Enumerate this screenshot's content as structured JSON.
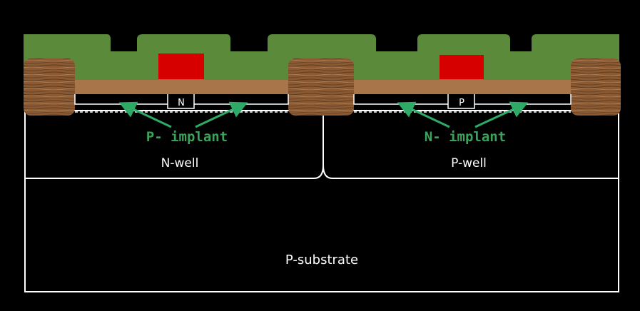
{
  "labels": {
    "n_diffusion": "N",
    "p_diffusion": "P",
    "p_implant": "P- implant",
    "n_implant": "N- implant",
    "n_well": "N-well",
    "p_well": "P-well",
    "p_substrate": "P-substrate"
  },
  "colors": {
    "background": "#000000",
    "oxide_green": "#5a8a3a",
    "gate_red": "#d60000",
    "polysilicon_brown": "#a8754a",
    "field_oxide_wood": "#8b5a33",
    "implant_text_green": "#3aa35a",
    "arrow_green": "#2eaa66",
    "outline_white": "#ffffff"
  }
}
